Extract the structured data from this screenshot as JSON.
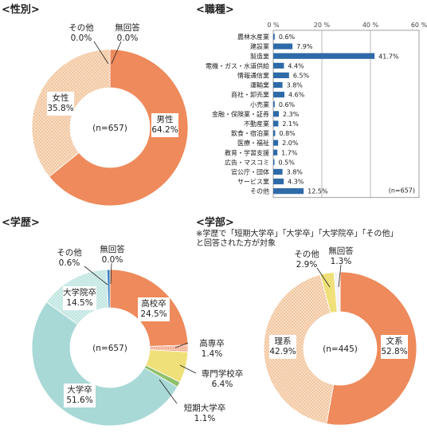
{
  "chart_data": [
    {
      "type": "pie",
      "title": "<性別>",
      "center_label": "(n=657)",
      "slices": [
        {
          "label": "男性",
          "value": 64.2,
          "color": "#ee8a5b"
        },
        {
          "label": "女性",
          "value": 35.8,
          "color": "#f6cfa7",
          "hatched": true
        },
        {
          "label": "その他",
          "value": 0.0,
          "color": "#f0dd7a"
        },
        {
          "label": "無回答",
          "value": 0.0,
          "color": "#eeeeee"
        }
      ]
    },
    {
      "type": "bar",
      "orientation": "horizontal",
      "title": "<職種>",
      "xlim": [
        0,
        60
      ],
      "xticks": [
        "0 %",
        "20 %",
        "40 %",
        "60 %"
      ],
      "annotation": "(n=657)",
      "grid": true,
      "color": "#2e6aa8",
      "categories": [
        "農林水産業",
        "建設業",
        "製造業",
        "電機・ガス・水道供給",
        "情報通信業",
        "運輸業",
        "商社・卸売業",
        "小売業",
        "金融・保険業・証券",
        "不動産業",
        "飲食・宿泊業",
        "医療・福祉",
        "教育・学習支援",
        "広告・マスコミ",
        "官公庁・団体",
        "サービス業",
        "その他"
      ],
      "values": [
        0.6,
        7.9,
        41.7,
        4.4,
        6.5,
        3.8,
        4.6,
        0.6,
        2.3,
        2.1,
        0.8,
        2.0,
        1.7,
        0.5,
        3.8,
        4.3,
        12.5
      ],
      "value_labels": [
        "0.6%",
        "7.9%",
        "41.7%",
        "4.4%",
        "6.5%",
        "3.8%",
        "4.6%",
        "0.6%",
        "2.3%",
        "2.1%",
        "0.8%",
        "2.0%",
        "1.7%",
        "0.5%",
        "3.8%",
        "4.3%",
        "12.5%"
      ]
    },
    {
      "type": "pie",
      "title": "<学歴>",
      "center_label": "(n=657)",
      "slices": [
        {
          "label": "高校卒",
          "value": 24.5,
          "color": "#ee8a5b"
        },
        {
          "label": "高専卒",
          "value": 1.4,
          "color": "#f2a58a",
          "hatched": true
        },
        {
          "label": "専門学校卒",
          "value": 6.4,
          "color": "#f0e07a"
        },
        {
          "label": "短期大学卒",
          "value": 1.1,
          "color": "#8fbf6a"
        },
        {
          "label": "大学卒",
          "value": 51.6,
          "color": "#a9d9d6"
        },
        {
          "label": "大学院卒",
          "value": 14.5,
          "color": "#c8ebe7",
          "hatched": true
        },
        {
          "label": "その他",
          "value": 0.6,
          "color": "#3b7fbf"
        },
        {
          "label": "無回答",
          "value": 0.0,
          "color": "#eeeeee"
        }
      ]
    },
    {
      "type": "pie",
      "title": "<学部>",
      "note": [
        "※学歴で「短期大学卒」「大学卒」「大学院卒」「その他」",
        "と回答された方が対象"
      ],
      "center_label": "(n=445)",
      "slices": [
        {
          "label": "文系",
          "value": 52.8,
          "color": "#ee8a5b"
        },
        {
          "label": "理系",
          "value": 42.9,
          "color": "#f6cfa7",
          "hatched": true
        },
        {
          "label": "その他",
          "value": 2.9,
          "color": "#f0e07a"
        },
        {
          "label": "無回答",
          "value": 1.3,
          "color": "#f4f4f4"
        }
      ]
    }
  ]
}
